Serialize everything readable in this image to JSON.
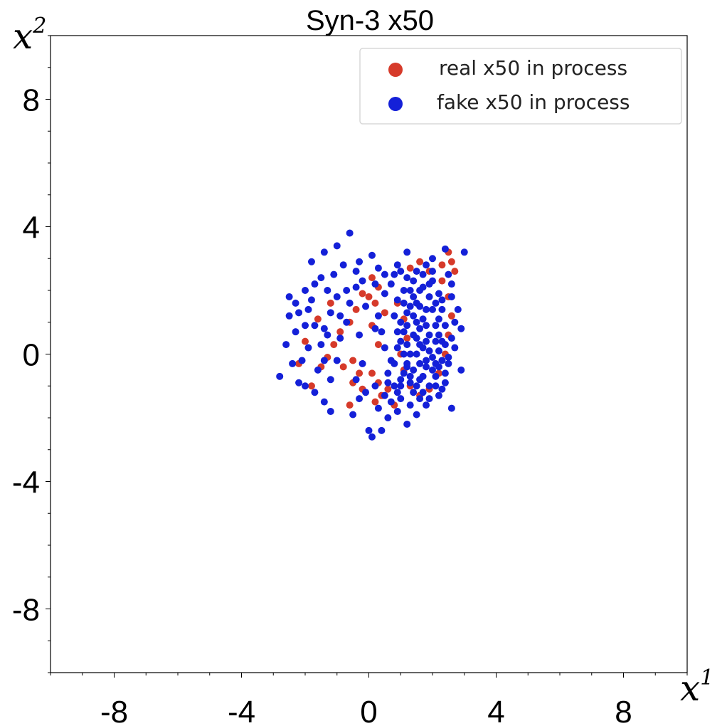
{
  "chart_data": {
    "type": "scatter",
    "title": "Syn-3 x50",
    "xlabel": {
      "var": "x",
      "sup": "1"
    },
    "ylabel": {
      "var": "x",
      "sup": "2"
    },
    "xlim": [
      -10,
      10
    ],
    "ylim": [
      -10,
      10
    ],
    "xticks": [
      -8,
      -4,
      0,
      4,
      8
    ],
    "yticks": [
      -8,
      -4,
      0,
      4,
      8
    ],
    "xtick_labels": [
      "-8",
      "-4",
      "0",
      "4",
      "8"
    ],
    "ytick_labels": [
      "-8",
      "-4",
      "0",
      "4",
      "8"
    ],
    "grid": false,
    "legend_position": "top-right",
    "series": [
      {
        "name": "real x50 in process",
        "color": "#d63a2a",
        "points": [
          [
            2.5,
            3.2
          ],
          [
            2.6,
            2.9
          ],
          [
            2.3,
            2.8
          ],
          [
            2.7,
            2.6
          ],
          [
            1.3,
            2.7
          ],
          [
            0.1,
            2.4
          ],
          [
            0.3,
            2.1
          ],
          [
            0.0,
            1.8
          ],
          [
            0.2,
            1.6
          ],
          [
            -0.2,
            1.9
          ],
          [
            -0.4,
            1.4
          ],
          [
            -0.6,
            1.0
          ],
          [
            -0.9,
            0.7
          ],
          [
            -1.1,
            0.3
          ],
          [
            -1.3,
            -0.1
          ],
          [
            -1.5,
            -0.4
          ],
          [
            -1.8,
            -1.0
          ],
          [
            -0.8,
            -0.4
          ],
          [
            -0.5,
            -0.2
          ],
          [
            -0.3,
            -0.6
          ],
          [
            -0.5,
            -0.9
          ],
          [
            -0.2,
            -1.1
          ],
          [
            0.1,
            -0.6
          ],
          [
            0.3,
            -0.9
          ],
          [
            0.4,
            -1.3
          ],
          [
            0.2,
            -1.5
          ],
          [
            0.6,
            -1.1
          ],
          [
            0.8,
            -1.6
          ],
          [
            -0.6,
            -1.6
          ],
          [
            0.3,
            0.3
          ],
          [
            0.1,
            0.9
          ],
          [
            0.5,
            1.3
          ],
          [
            0.9,
            1.6
          ],
          [
            1.1,
            1.1
          ],
          [
            1.2,
            0.5
          ],
          [
            1.0,
            0.0
          ],
          [
            1.1,
            -0.5
          ],
          [
            1.3,
            -1.0
          ],
          [
            1.6,
            -1.3
          ],
          [
            1.9,
            -1.1
          ],
          [
            2.2,
            -0.6
          ],
          [
            2.4,
            0.0
          ],
          [
            2.5,
            0.6
          ],
          [
            2.6,
            1.2
          ],
          [
            2.5,
            1.8
          ],
          [
            2.3,
            2.3
          ],
          [
            1.9,
            2.6
          ],
          [
            1.6,
            2.9
          ],
          [
            -1.2,
            1.6
          ],
          [
            -1.6,
            1.1
          ],
          [
            -2.0,
            0.4
          ],
          [
            -2.2,
            -0.3
          ]
        ]
      },
      {
        "name": "fake x50 in process",
        "color": "#1420d8",
        "points": [
          [
            -0.6,
            3.8
          ],
          [
            -1.0,
            3.4
          ],
          [
            -1.4,
            3.2
          ],
          [
            -1.8,
            2.9
          ],
          [
            -0.8,
            2.8
          ],
          [
            -0.4,
            2.6
          ],
          [
            0.1,
            3.1
          ],
          [
            0.5,
            2.5
          ],
          [
            0.9,
            2.8
          ],
          [
            1.2,
            3.2
          ],
          [
            1.5,
            2.6
          ],
          [
            2.0,
            3.0
          ],
          [
            2.4,
            3.3
          ],
          [
            3.0,
            3.2
          ],
          [
            2.6,
            2.2
          ],
          [
            2.8,
            1.4
          ],
          [
            2.9,
            0.8
          ],
          [
            2.7,
            0.2
          ],
          [
            2.5,
            -0.3
          ],
          [
            2.9,
            -0.5
          ],
          [
            2.4,
            -0.9
          ],
          [
            2.2,
            -1.3
          ],
          [
            2.6,
            -1.7
          ],
          [
            1.8,
            -1.6
          ],
          [
            1.5,
            -1.9
          ],
          [
            1.2,
            -2.2
          ],
          [
            0.9,
            -1.8
          ],
          [
            0.6,
            -2.0
          ],
          [
            0.4,
            -2.4
          ],
          [
            0.1,
            -2.6
          ],
          [
            0.0,
            -2.4
          ],
          [
            -0.5,
            -1.9
          ],
          [
            -1.2,
            -1.8
          ],
          [
            -1.4,
            -1.5
          ],
          [
            -1.7,
            -1.2
          ],
          [
            -2.0,
            -1.0
          ],
          [
            -2.2,
            -0.9
          ],
          [
            -2.8,
            -0.7
          ],
          [
            -2.4,
            -0.3
          ],
          [
            -2.6,
            0.3
          ],
          [
            -2.3,
            0.7
          ],
          [
            -2.5,
            1.2
          ],
          [
            -2.3,
            1.6
          ],
          [
            -2.5,
            1.8
          ],
          [
            -2.0,
            2.0
          ],
          [
            -1.7,
            2.2
          ],
          [
            -1.5,
            2.4
          ],
          [
            -1.3,
            2.0
          ],
          [
            -1.9,
            1.4
          ],
          [
            -1.7,
            0.9
          ],
          [
            -1.9,
            0.2
          ],
          [
            -1.6,
            -0.5
          ],
          [
            -1.2,
            -0.8
          ],
          [
            -1.0,
            -0.2
          ],
          [
            -1.3,
            0.6
          ],
          [
            -0.9,
            1.2
          ],
          [
            -0.6,
            1.6
          ],
          [
            -0.4,
            2.1
          ],
          [
            -0.1,
            1.5
          ],
          [
            0.3,
            1.2
          ],
          [
            0.4,
            0.7
          ],
          [
            0.5,
            0.2
          ],
          [
            0.7,
            -0.2
          ],
          [
            0.6,
            -0.6
          ],
          [
            0.8,
            -1.0
          ],
          [
            1.0,
            -1.4
          ],
          [
            1.3,
            -1.6
          ],
          [
            1.6,
            -1.4
          ],
          [
            1.9,
            -1.0
          ],
          [
            2.1,
            -0.7
          ],
          [
            2.3,
            -0.2
          ],
          [
            2.4,
            0.3
          ],
          [
            2.4,
            0.9
          ],
          [
            2.3,
            1.4
          ],
          [
            2.2,
            1.9
          ],
          [
            2.0,
            2.3
          ],
          [
            1.7,
            2.5
          ],
          [
            1.4,
            2.3
          ],
          [
            1.1,
            2.0
          ],
          [
            0.9,
            1.7
          ],
          [
            0.8,
            1.2
          ],
          [
            0.9,
            0.7
          ],
          [
            0.9,
            0.2
          ],
          [
            0.8,
            -0.3
          ],
          [
            1.0,
            -0.8
          ],
          [
            1.2,
            -0.3
          ],
          [
            1.2,
            0.3
          ],
          [
            1.2,
            0.9
          ],
          [
            1.3,
            1.5
          ],
          [
            1.3,
            2.0
          ],
          [
            1.6,
            2.0
          ],
          [
            1.6,
            1.5
          ],
          [
            1.5,
            1.0
          ],
          [
            1.5,
            0.5
          ],
          [
            1.5,
            0.0
          ],
          [
            1.4,
            -0.5
          ],
          [
            1.5,
            -1.0
          ],
          [
            1.7,
            -0.7
          ],
          [
            1.8,
            -0.2
          ],
          [
            1.8,
            0.4
          ],
          [
            1.8,
            0.9
          ],
          [
            1.8,
            1.4
          ],
          [
            1.9,
            1.8
          ],
          [
            2.0,
            1.4
          ],
          [
            2.1,
            0.9
          ],
          [
            2.1,
            0.4
          ],
          [
            2.0,
            -0.1
          ],
          [
            2.0,
            -0.5
          ],
          [
            2.2,
            0.1
          ],
          [
            2.2,
            0.6
          ],
          [
            2.2,
            1.1
          ],
          [
            2.1,
            1.6
          ],
          [
            1.7,
            2.1
          ],
          [
            1.4,
            1.2
          ],
          [
            1.6,
            0.8
          ],
          [
            1.7,
            0.2
          ],
          [
            1.6,
            -0.3
          ],
          [
            1.3,
            -0.9
          ],
          [
            1.1,
            -0.6
          ],
          [
            1.0,
            0.4
          ],
          [
            1.0,
            1.0
          ],
          [
            1.1,
            1.6
          ],
          [
            1.2,
            2.4
          ],
          [
            0.7,
            2.2
          ],
          [
            0.5,
            1.9
          ],
          [
            0.2,
            2.2
          ],
          [
            -0.2,
            2.3
          ],
          [
            -0.7,
            2.0
          ],
          [
            -1.0,
            1.8
          ],
          [
            -1.2,
            1.3
          ],
          [
            -1.4,
            0.8
          ],
          [
            -1.5,
            0.3
          ],
          [
            -1.4,
            -0.2
          ],
          [
            -0.9,
            0.5
          ],
          [
            -0.7,
            1.0
          ],
          [
            -0.3,
            0.6
          ],
          [
            -0.2,
            -0.3
          ],
          [
            -0.4,
            -0.8
          ],
          [
            0.2,
            -1.0
          ],
          [
            0.5,
            -1.3
          ],
          [
            -0.3,
            -1.4
          ],
          [
            0.7,
            -1.5
          ],
          [
            1.9,
            -1.4
          ],
          [
            2.0,
            2.6
          ],
          [
            0.2,
            0.8
          ],
          [
            -2.1,
            -0.2
          ],
          [
            -2.0,
            0.9
          ],
          [
            -2.2,
            1.3
          ],
          [
            -1.8,
            1.7
          ],
          [
            -1.1,
            2.5
          ],
          [
            -0.3,
            2.9
          ],
          [
            0.3,
            2.7
          ],
          [
            0.8,
            2.5
          ],
          [
            1.0,
            2.6
          ],
          [
            1.8,
            2.8
          ],
          [
            2.5,
            2.5
          ],
          [
            2.6,
            1.8
          ],
          [
            2.7,
            1.0
          ],
          [
            2.6,
            0.5
          ],
          [
            2.5,
            -0.1
          ],
          [
            2.4,
            -0.6
          ],
          [
            0.3,
            -1.7
          ],
          [
            -0.1,
            -1.2
          ],
          [
            1.4,
            -1.2
          ],
          [
            1.7,
            -1.2
          ],
          [
            2.1,
            -1.0
          ],
          [
            2.3,
            -1.1
          ],
          [
            1.3,
            0.0
          ],
          [
            1.4,
            0.6
          ],
          [
            1.4,
            1.8
          ],
          [
            1.9,
            2.2
          ],
          [
            2.3,
            1.7
          ],
          [
            2.3,
            0.4
          ],
          [
            2.1,
            -0.3
          ],
          [
            1.9,
            0.1
          ],
          [
            1.6,
            0.3
          ],
          [
            1.7,
            1.1
          ],
          [
            1.9,
            0.6
          ],
          [
            1.5,
            1.6
          ],
          [
            1.2,
            1.3
          ],
          [
            1.1,
            0.7
          ],
          [
            1.1,
            0.0
          ],
          [
            1.2,
            -0.4
          ],
          [
            1.3,
            -0.7
          ],
          [
            1.8,
            -0.4
          ],
          [
            2.2,
            -0.4
          ],
          [
            1.6,
            -0.8
          ],
          [
            0.9,
            -1.2
          ],
          [
            1.0,
            -1.0
          ],
          [
            0.6,
            -0.9
          ]
        ]
      }
    ]
  }
}
